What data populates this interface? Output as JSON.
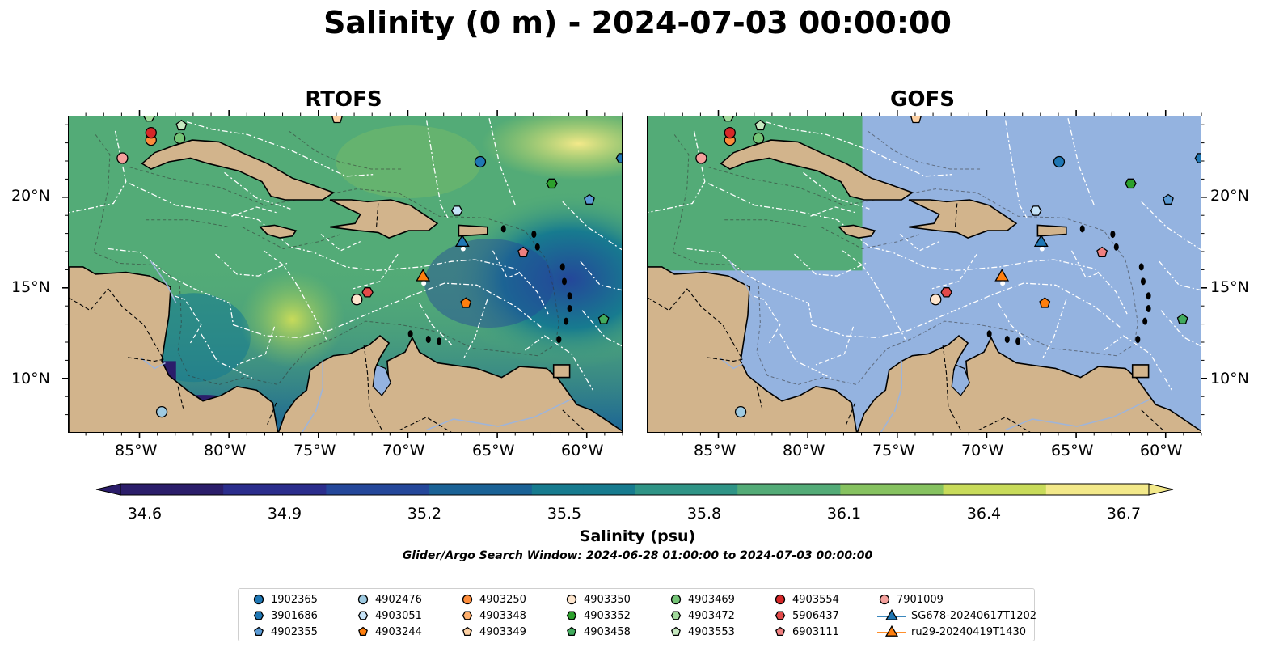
{
  "title": "Salinity (0 m) - 2024-07-03 00:00:00",
  "panels": [
    {
      "title": "RTOFS"
    },
    {
      "title": "GOFS"
    }
  ],
  "x_ticks": [
    "85°W",
    "80°W",
    "75°W",
    "70°W",
    "65°W",
    "60°W"
  ],
  "y_ticks": [
    "20°N",
    "15°N",
    "10°N"
  ],
  "colorbar": {
    "ticks": [
      "34.6",
      "34.9",
      "35.2",
      "35.5",
      "35.8",
      "36.1",
      "36.4",
      "36.7"
    ],
    "label": "Salinity (psu)",
    "colors": [
      "#2b1d6a",
      "#2b2d8c",
      "#24479a",
      "#1a6296",
      "#177b8f",
      "#2f9486",
      "#53ab77",
      "#86c260",
      "#c8db5a",
      "#f3e98a"
    ]
  },
  "search_window": "Glider/Argo Search Window: 2024-06-28 01:00:00 to 2024-07-03 00:00:00",
  "colors": {
    "land": "#d2b48c",
    "gofs_ocean": "#94b3e0",
    "lake": "#94b3e0"
  },
  "legend": [
    {
      "label": "1902365",
      "marker": "circle",
      "color": "#1f77b4"
    },
    {
      "label": "3901686",
      "marker": "hexagon",
      "color": "#1f77b4"
    },
    {
      "label": "4902355",
      "marker": "pentagon",
      "color": "#5b9bd5"
    },
    {
      "label": "4902476",
      "marker": "circle",
      "color": "#9ecae1"
    },
    {
      "label": "4903051",
      "marker": "hexagon",
      "color": "#c6e3f7"
    },
    {
      "label": "4903244",
      "marker": "pentagon",
      "color": "#ff7f0e"
    },
    {
      "label": "4903250",
      "marker": "circle",
      "color": "#fd8d3c"
    },
    {
      "label": "4903348",
      "marker": "hexagon",
      "color": "#fdae6b"
    },
    {
      "label": "4903349",
      "marker": "pentagon",
      "color": "#fdd0a2"
    },
    {
      "label": "4903350",
      "marker": "circle",
      "color": "#fee6ce"
    },
    {
      "label": "4903352",
      "marker": "hexagon",
      "color": "#2ca02c"
    },
    {
      "label": "4903458",
      "marker": "pentagon",
      "color": "#41ab5d"
    },
    {
      "label": "4903469",
      "marker": "circle",
      "color": "#74c476"
    },
    {
      "label": "4903472",
      "marker": "hexagon",
      "color": "#a1d99b"
    },
    {
      "label": "4903553",
      "marker": "pentagon",
      "color": "#c7e9c0"
    },
    {
      "label": "4903554",
      "marker": "circle",
      "color": "#d62728"
    },
    {
      "label": "5906437",
      "marker": "hexagon",
      "color": "#e34a4a"
    },
    {
      "label": "6903111",
      "marker": "pentagon",
      "color": "#f08080"
    },
    {
      "label": "7901009",
      "marker": "circle",
      "color": "#f4a09c"
    },
    {
      "label": "SG678-20240617T1202",
      "marker": "triangle",
      "color": "#1f77b4"
    },
    {
      "label": "ru29-20240419T1430",
      "marker": "triangle",
      "color": "#ff7f0e"
    }
  ],
  "floats": [
    {
      "id": "4903250",
      "lon": -84.4,
      "lat": 23.2
    },
    {
      "id": "4903554",
      "lon": -84.4,
      "lat": 23.6
    },
    {
      "id": "4903472",
      "lon": -84.5,
      "lat": 24.5
    },
    {
      "id": "4903553",
      "lon": -82.7,
      "lat": 24.0
    },
    {
      "id": "4903469",
      "lon": -82.8,
      "lat": 23.3
    },
    {
      "id": "4903349",
      "lon": -74.0,
      "lat": 24.4
    },
    {
      "id": "7901009",
      "lon": -86.0,
      "lat": 22.2
    },
    {
      "id": "1902365",
      "lon": -66.0,
      "lat": 22.0
    },
    {
      "id": "3901686",
      "lon": -58.1,
      "lat": 22.2
    },
    {
      "id": "4903352",
      "lon": -62.0,
      "lat": 20.8
    },
    {
      "id": "4902355",
      "lon": -59.9,
      "lat": 19.9
    },
    {
      "id": "4903051",
      "lon": -67.3,
      "lat": 19.3
    },
    {
      "id": "6903111",
      "lon": -63.6,
      "lat": 17.0
    },
    {
      "id": "5906437",
      "lon": -72.3,
      "lat": 14.8
    },
    {
      "id": "4903350",
      "lon": -72.9,
      "lat": 14.4
    },
    {
      "id": "4903244",
      "lon": -66.8,
      "lat": 14.2
    },
    {
      "id": "4903458",
      "lon": -59.1,
      "lat": 13.3
    },
    {
      "id": "4902476",
      "lon": -83.8,
      "lat": 8.2
    }
  ],
  "gliders": [
    {
      "id": "SG678-20240617T1202",
      "lon": -67.0,
      "lat": 17.6
    },
    {
      "id": "ru29-20240419T1430",
      "lon": -69.2,
      "lat": 15.7
    }
  ]
}
